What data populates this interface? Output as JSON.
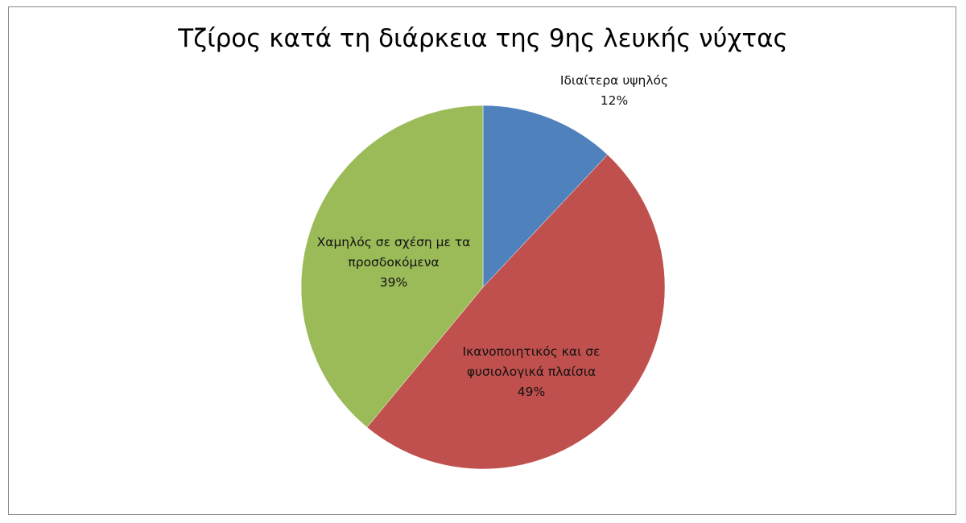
{
  "chart_data": {
    "type": "pie",
    "title": "Τζίρος κατά τη διάρκεια της 9ης λευκής νύχτας",
    "categories": [
      "Ιδιαίτερα υψηλός",
      "Ικανοποιητικός και σε φυσιολογικά πλαίσια",
      "Χαμηλός σε σχέση με τα προσδοκόμενα"
    ],
    "values": [
      12,
      49,
      39
    ],
    "data_labels": [
      "12%",
      "49%",
      "39%"
    ],
    "colors": [
      "#4f81bd",
      "#c0504d",
      "#9bbb59"
    ],
    "start_angle": "12 o'clock",
    "direction": "clockwise",
    "legend": "none"
  }
}
